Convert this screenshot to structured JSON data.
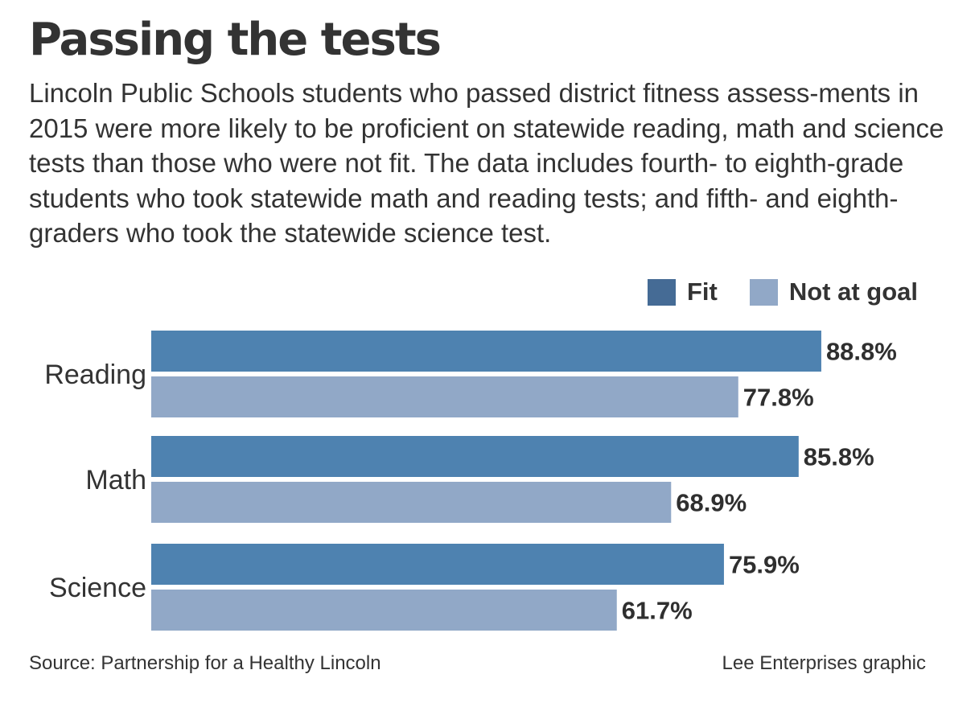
{
  "title": "Passing the tests",
  "subtitle": "Lincoln Public Schools students who passed district fitness assess-ments in 2015 were more likely to be proficient on statewide reading, math and science tests than those who were not fit. The data includes fourth- to eighth-grade students who took statewide math and reading tests; and fifth- and eighth-graders who took the statewide science test.",
  "footer": {
    "source": "Source: Partnership for a Healthy Lincoln",
    "credit": "Lee Enterprises graphic"
  },
  "colors": {
    "fit": "#4e82b0",
    "not_at_goal": "#91a8c7",
    "legend_fit": "#456b95",
    "legend_not_at_goal": "#91a8c7"
  },
  "chart_data": {
    "type": "bar",
    "orientation": "horizontal",
    "categories": [
      "Reading",
      "Math",
      "Science"
    ],
    "series": [
      {
        "name": "Fit",
        "values": [
          88.8,
          85.8,
          75.9
        ],
        "labels": [
          "88.8%",
          "85.8%",
          "75.9%"
        ]
      },
      {
        "name": "Not at goal",
        "values": [
          77.8,
          68.9,
          61.7
        ],
        "labels": [
          "77.8%",
          "68.9%",
          "61.7%"
        ]
      }
    ],
    "xlim": [
      0,
      100
    ],
    "grid": false,
    "legend_position": "top-right"
  }
}
